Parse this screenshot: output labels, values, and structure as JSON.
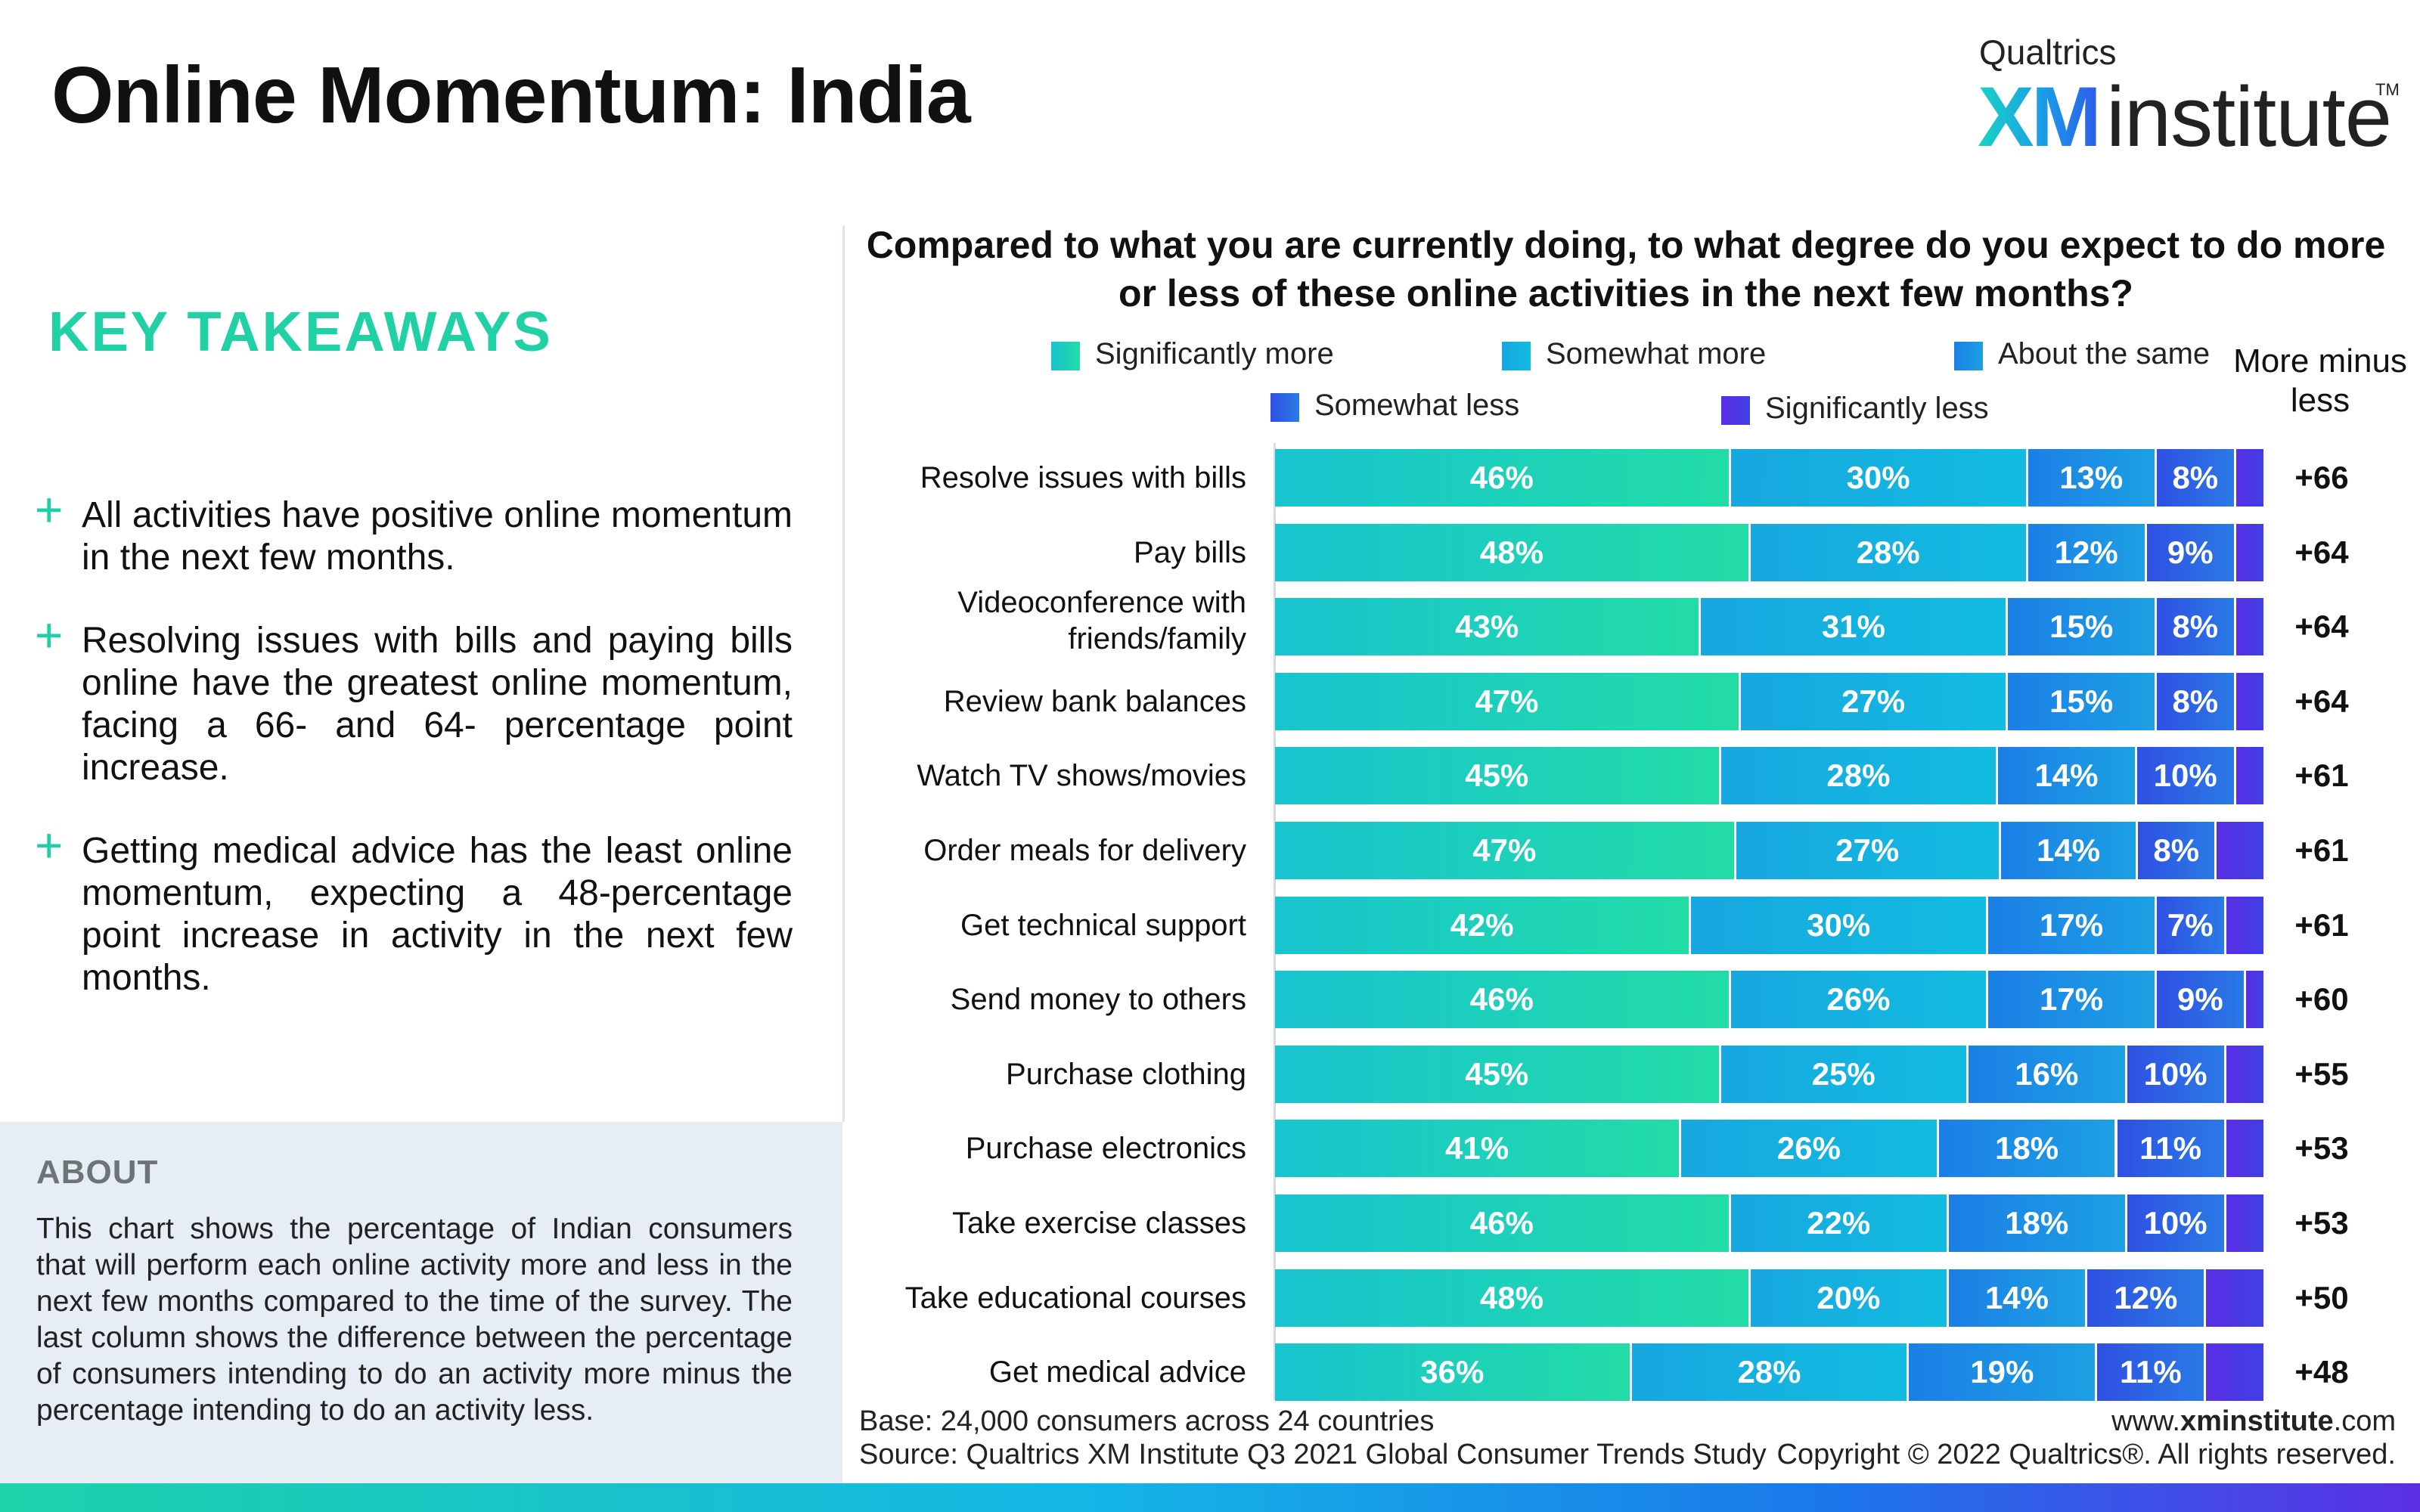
{
  "page": {
    "title": "Online Momentum: India",
    "logo": {
      "top": "Qualtrics",
      "xm": "XM",
      "institute": "institute",
      "tm": "TM"
    }
  },
  "takeaways": {
    "heading": "KEY TAKEAWAYS",
    "items": [
      "All activities have positive online momentum in the next few months.",
      "Resolving issues with bills and paying bills online have the greatest online momentum, facing a 66- and 64- percentage point increase.",
      "Getting medical advice has the least online momentum, expecting a 48-percentage point increase in activity in the next few months."
    ]
  },
  "about": {
    "heading": "ABOUT",
    "text": "This chart shows the percentage of Indian consumers that will perform each online activity more and less in the next few months compared to the time of the survey. The last column shows the difference between the percentage of consumers intending to do an activity more minus the percentage intending to do an activity less."
  },
  "footer": {
    "base": "Base: 24,000 consumers across 24 countries",
    "source": "Source: Qualtrics XM Institute Q3 2021 Global Consumer Trends Study",
    "url_prefix": "www.",
    "url_bold": "xminstitute",
    "url_suffix": ".com",
    "copyright": "Copyright © 2022 Qualtrics®. All rights reserved."
  },
  "chart_data": {
    "type": "bar",
    "orientation": "horizontal-stacked-100",
    "title": "Compared to what you are currently doing, to what degree do you expect to do more or less of these online activities in the next few months?",
    "net_column_label": "More minus less",
    "categories": [
      "Resolve issues with bills",
      "Pay bills",
      "Videoconference with friends/family",
      "Review bank balances",
      "Watch TV shows/movies",
      "Order meals for delivery",
      "Get technical support",
      "Send money to others",
      "Purchase clothing",
      "Purchase electronics",
      "Take exercise classes",
      "Take educational courses",
      "Get medical advice"
    ],
    "series": [
      {
        "name": "Significantly more",
        "color_start": "#18c4cf",
        "color_end": "#22dca6",
        "values": [
          46,
          48,
          43,
          47,
          45,
          47,
          42,
          46,
          45,
          41,
          46,
          48,
          36
        ]
      },
      {
        "name": "Somewhat more",
        "color_start": "#17a7e0",
        "color_end": "#12bce0",
        "values": [
          30,
          28,
          31,
          27,
          28,
          27,
          30,
          26,
          25,
          26,
          22,
          20,
          28
        ]
      },
      {
        "name": "About the same",
        "color_start": "#1b7fe6",
        "color_end": "#1da0e4",
        "values": [
          13,
          12,
          15,
          15,
          14,
          14,
          17,
          17,
          16,
          18,
          18,
          14,
          19
        ]
      },
      {
        "name": "Somewhat less",
        "color_start": "#2f50e2",
        "color_end": "#2a7ae6",
        "values": [
          8,
          9,
          8,
          8,
          10,
          8,
          7,
          9,
          10,
          11,
          10,
          12,
          11
        ]
      },
      {
        "name": "Significantly less",
        "color_start": "#5a2ee6",
        "color_end": "#3f3fe4",
        "values": [
          3,
          3,
          3,
          3,
          3,
          5,
          4,
          2,
          4,
          4,
          4,
          6,
          6
        ]
      }
    ],
    "labels_shown_for_series": [
      0,
      1,
      2,
      3
    ],
    "net": [
      "+66",
      "+64",
      "+64",
      "+64",
      "+61",
      "+61",
      "+61",
      "+60",
      "+55",
      "+53",
      "+53",
      "+50",
      "+48"
    ],
    "xlim": [
      0,
      100
    ],
    "legend_placement": "top",
    "grid": false
  }
}
